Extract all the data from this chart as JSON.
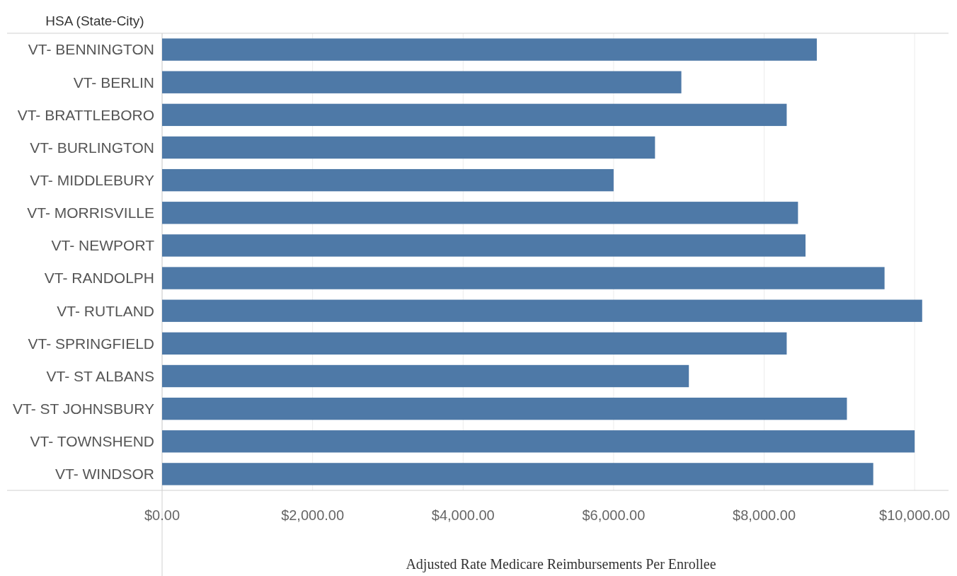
{
  "chart_data": {
    "type": "bar",
    "orientation": "horizontal",
    "ylabel": "HSA (State-City)",
    "xlabel": "Adjusted Rate Medicare Reimbursements Per Enrollee",
    "categories": [
      "VT- BENNINGTON",
      "VT- BERLIN",
      "VT- BRATTLEBORO",
      "VT- BURLINGTON",
      "VT- MIDDLEBURY",
      "VT- MORRISVILLE",
      "VT- NEWPORT",
      "VT- RANDOLPH",
      "VT- RUTLAND",
      "VT- SPRINGFIELD",
      "VT- ST ALBANS",
      "VT- ST JOHNSBURY",
      "VT- TOWNSHEND",
      "VT- WINDSOR"
    ],
    "values": [
      8700,
      6900,
      8300,
      6550,
      6000,
      8450,
      8550,
      9600,
      10100,
      8300,
      7000,
      9100,
      10000,
      9450
    ],
    "color": "#4e79a7",
    "xlim": [
      0,
      10450
    ],
    "xticks": [
      {
        "value": 0,
        "label": "$0.00"
      },
      {
        "value": 2000,
        "label": "$2,000.00"
      },
      {
        "value": 4000,
        "label": "$4,000.00"
      },
      {
        "value": 6000,
        "label": "$6,000.00"
      },
      {
        "value": 8000,
        "label": "$8,000.00"
      },
      {
        "value": 10000,
        "label": "$10,000.00"
      }
    ],
    "grid": "x"
  }
}
